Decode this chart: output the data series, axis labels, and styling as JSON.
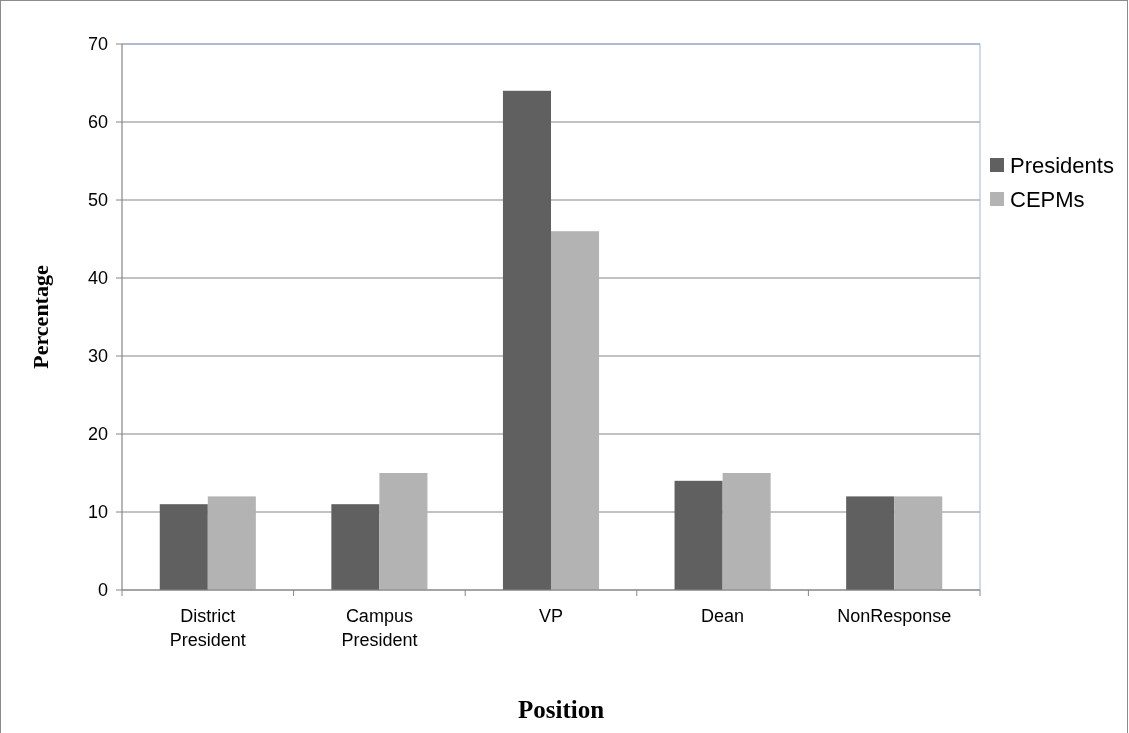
{
  "chart_data": {
    "type": "bar",
    "categories": [
      "District President",
      "Campus President",
      "VP",
      "Dean",
      "NonResponse"
    ],
    "series": [
      {
        "name": "Presidents",
        "color": "#606060",
        "values": [
          11,
          11,
          64,
          14,
          12
        ]
      },
      {
        "name": "CEPMs",
        "color": "#b3b3b3",
        "values": [
          12,
          15,
          46,
          15,
          12
        ]
      }
    ],
    "xlabel": "Position",
    "ylabel": "Percentage",
    "ylim": [
      0,
      70
    ],
    "yticks": [
      0,
      10,
      20,
      30,
      40,
      50,
      60,
      70
    ],
    "grid": "y",
    "legend": "right"
  }
}
